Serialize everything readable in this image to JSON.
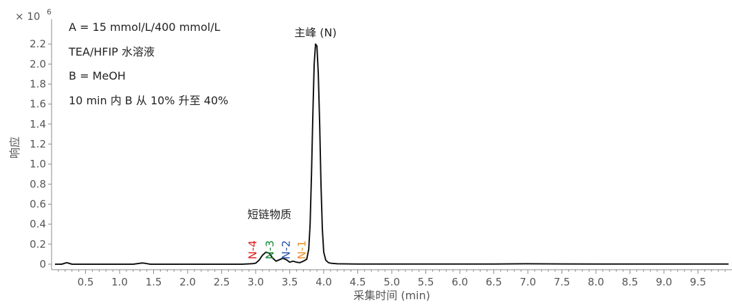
{
  "chart_data": {
    "type": "line",
    "xlabel": "采集时间 (min)",
    "ylabel": "响应",
    "y_multiplier": "× 10",
    "y_exponent": "6",
    "xlim": [
      0,
      10
    ],
    "ylim": [
      0,
      2.4
    ],
    "x_ticks": [
      0.5,
      1.0,
      1.5,
      2.0,
      2.5,
      3.0,
      3.5,
      4.0,
      4.5,
      5.0,
      5.5,
      6.0,
      6.5,
      7.0,
      7.5,
      8.0,
      8.5,
      9.0,
      9.5
    ],
    "x_tick_labels": [
      "0.5",
      "1.0",
      "1.5",
      "2.0",
      "2.5",
      "3.0",
      "3.5",
      "4.0",
      "4.5",
      "5.0",
      "5.5",
      "6.0",
      "6.5",
      "7.0",
      "7.5",
      "8.0",
      "8.5",
      "9.0",
      "9.5"
    ],
    "y_ticks": [
      0,
      0.2,
      0.4,
      0.6,
      0.8,
      1.0,
      1.2,
      1.4,
      1.6,
      1.8,
      2.0,
      2.2
    ],
    "y_tick_labels": [
      "0",
      "0.2",
      "0.4",
      "0.6",
      "0.8",
      "1.0",
      "1.2",
      "1.4",
      "1.6",
      "1.8",
      "2.0",
      "2.2"
    ],
    "grid": false,
    "series": [
      {
        "color": "#111111",
        "x": [
          0.05,
          0.15,
          0.22,
          0.25,
          0.3,
          0.4,
          0.6,
          0.8,
          1.0,
          1.2,
          1.33,
          1.38,
          1.45,
          1.6,
          2.0,
          2.4,
          2.8,
          2.95,
          3.0,
          3.05,
          3.1,
          3.15,
          3.2,
          3.25,
          3.3,
          3.35,
          3.4,
          3.45,
          3.5,
          3.55,
          3.6,
          3.65,
          3.7,
          3.75,
          3.78,
          3.8,
          3.82,
          3.84,
          3.86,
          3.88,
          3.9,
          3.92,
          3.94,
          3.96,
          3.98,
          4.0,
          4.03,
          4.07,
          4.12,
          4.2,
          4.5,
          5.0,
          5.5,
          6.0,
          6.5,
          7.0,
          7.5,
          8.0,
          8.5,
          9.0,
          9.5,
          9.95
        ],
        "y": [
          0.0,
          0.0,
          0.015,
          0.01,
          0.0,
          0.0,
          0.0,
          0.0,
          0.0,
          0.0,
          0.012,
          0.008,
          0.0,
          0.0,
          0.0,
          0.0,
          0.0,
          0.005,
          0.01,
          0.04,
          0.09,
          0.12,
          0.11,
          0.06,
          0.03,
          0.045,
          0.06,
          0.045,
          0.02,
          0.03,
          0.02,
          0.015,
          0.03,
          0.05,
          0.15,
          0.4,
          0.9,
          1.5,
          2.0,
          2.2,
          2.18,
          1.9,
          1.4,
          0.8,
          0.35,
          0.12,
          0.04,
          0.015,
          0.008,
          0.004,
          0.002,
          0.002,
          0.002,
          0.002,
          0.002,
          0.004,
          0.003,
          0.002,
          0.002,
          0.002,
          0.002,
          0.002
        ]
      }
    ],
    "annotations": {
      "conditions": [
        "A = 15 mmol/L/400 mmol/L",
        "TEA/HFIP 水溶液",
        "B = MeOH",
        "10 min 内 B 从 10% 升至 40%"
      ],
      "main_peak": "主峰 (N)",
      "short_chain": "短链物质",
      "peak_labels": [
        {
          "text": "N-4",
          "x": 2.95,
          "color": "#e02020"
        },
        {
          "text": "N-3",
          "x": 3.2,
          "color": "#1a8a3a"
        },
        {
          "text": "N-2",
          "x": 3.44,
          "color": "#2a4fa8"
        },
        {
          "text": "N-1",
          "x": 3.67,
          "color": "#f0902a"
        }
      ]
    }
  }
}
